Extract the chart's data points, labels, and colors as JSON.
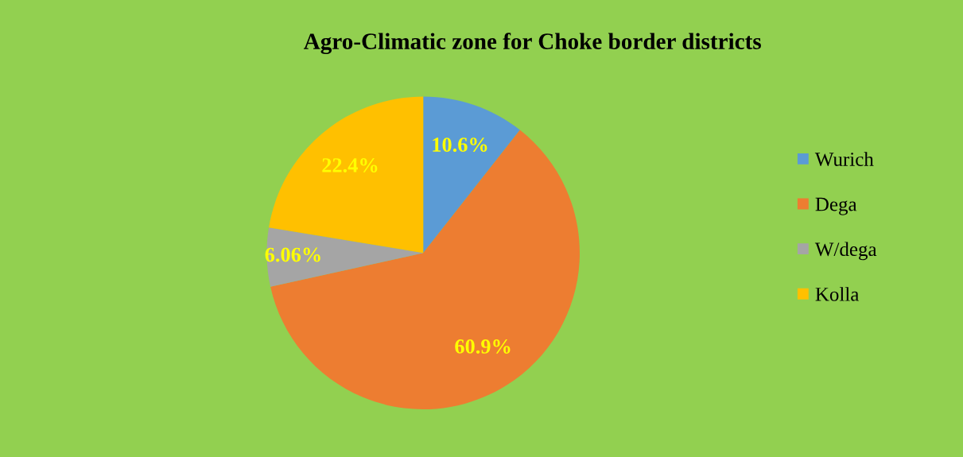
{
  "chart_data": {
    "type": "pie",
    "title": "Agro-Climatic zone for Choke border districts",
    "categories": [
      "Wurich",
      "Dega",
      "W/dega",
      "Kolla"
    ],
    "values": [
      10.6,
      60.9,
      6.06,
      22.4
    ],
    "colors": [
      "#5b9bd5",
      "#ed7d31",
      "#a5a5a5",
      "#ffc000"
    ],
    "value_labels": [
      "10.6%",
      "60.9%",
      "6.06%",
      "22.4%"
    ],
    "legend": "right"
  }
}
